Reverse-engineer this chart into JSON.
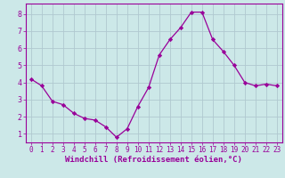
{
  "x": [
    0,
    1,
    2,
    3,
    4,
    5,
    6,
    7,
    8,
    9,
    10,
    11,
    12,
    13,
    14,
    15,
    16,
    17,
    18,
    19,
    20,
    21,
    22,
    23
  ],
  "y": [
    4.2,
    3.8,
    2.9,
    2.7,
    2.2,
    1.9,
    1.8,
    1.4,
    0.8,
    1.3,
    2.6,
    3.7,
    5.6,
    6.5,
    7.2,
    8.1,
    8.1,
    6.5,
    5.8,
    5.0,
    4.0,
    3.8,
    3.9,
    3.8
  ],
  "line_color": "#990099",
  "marker": "D",
  "marker_size": 2.2,
  "bg_color": "#cce8e8",
  "grid_color": "#b0c8d0",
  "xlabel": "Windchill (Refroidissement éolien,°C)",
  "xlim_min": -0.5,
  "xlim_max": 23.5,
  "ylim_min": 0.5,
  "ylim_max": 8.6,
  "yticks": [
    1,
    2,
    3,
    4,
    5,
    6,
    7,
    8
  ],
  "xticks": [
    0,
    1,
    2,
    3,
    4,
    5,
    6,
    7,
    8,
    9,
    10,
    11,
    12,
    13,
    14,
    15,
    16,
    17,
    18,
    19,
    20,
    21,
    22,
    23
  ],
  "xlabel_color": "#990099",
  "tick_color": "#990099",
  "spine_color": "#990099",
  "tick_fontsize": 5.5,
  "xlabel_fontsize": 6.5
}
